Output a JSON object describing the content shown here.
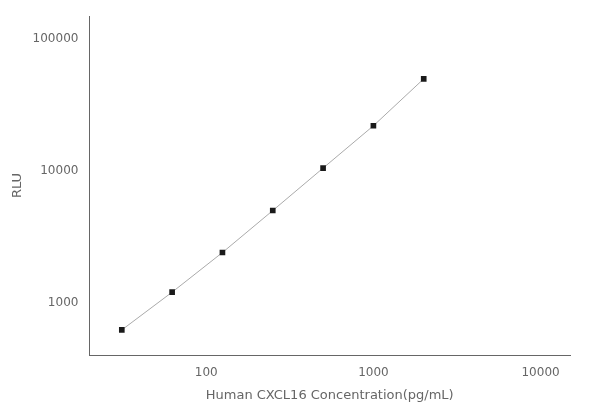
{
  "chart_data": {
    "type": "line",
    "x": [
      31.25,
      62.5,
      125,
      250,
      500,
      1000,
      2000
    ],
    "values": [
      620,
      1200,
      2400,
      5000,
      10500,
      22000,
      50000
    ],
    "xlabel": "Human CXCL16 Concentration(pg/mL)",
    "ylabel": "RLU",
    "log": true,
    "xlim": [
      20,
      15000
    ],
    "ylim": [
      400,
      150000
    ],
    "xticks": [
      100,
      1000,
      10000
    ],
    "yticks": [
      1000,
      10000,
      100000
    ],
    "color": "#aaaaaa",
    "colors": [
      "#1a1a1a",
      "#1a1a1a",
      "#1a1a1a",
      "#1a1a1a",
      "#1a1a1a",
      "#1a1a1a",
      "#1a1a1a"
    ],
    "marker": "square",
    "line_style": "solid",
    "grid": false
  }
}
